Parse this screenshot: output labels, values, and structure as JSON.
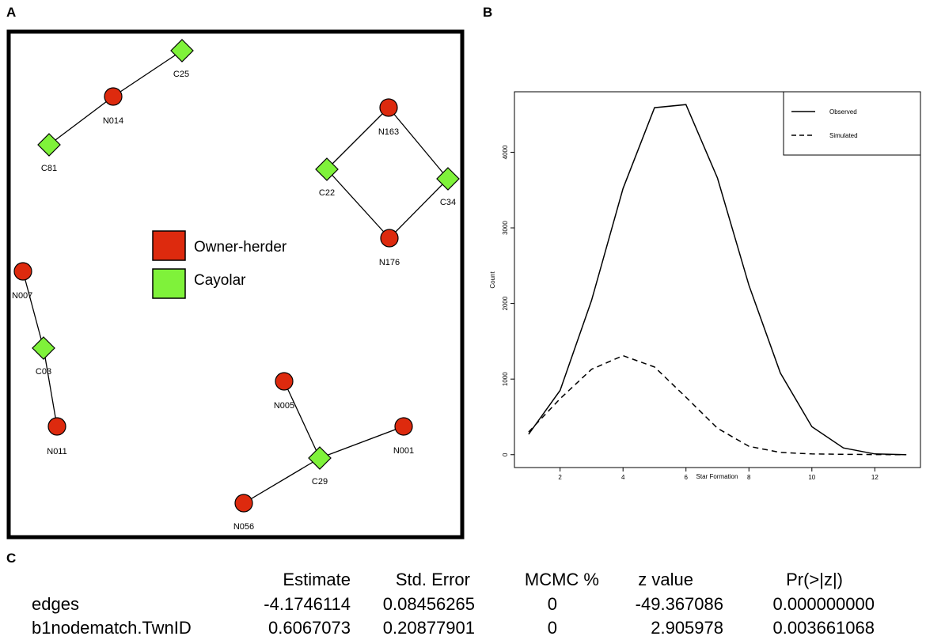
{
  "panel_letters": {
    "a": "A",
    "b": "B",
    "c": "C"
  },
  "colors": {
    "owner_herder": "#dd2a0e",
    "cayolar": "#7ff23a",
    "stroke": "#000000"
  },
  "network": {
    "legend": {
      "owner_herder": "Owner-herder",
      "cayolar": "Cayolar"
    },
    "nodes": [
      {
        "id": "C25",
        "type": "cayolar"
      },
      {
        "id": "N014",
        "type": "owner_herder"
      },
      {
        "id": "C81",
        "type": "cayolar"
      },
      {
        "id": "N163",
        "type": "owner_herder"
      },
      {
        "id": "C22",
        "type": "cayolar"
      },
      {
        "id": "C34",
        "type": "cayolar"
      },
      {
        "id": "N176",
        "type": "owner_herder"
      },
      {
        "id": "N007",
        "type": "owner_herder"
      },
      {
        "id": "C03",
        "type": "cayolar"
      },
      {
        "id": "N011",
        "type": "owner_herder"
      },
      {
        "id": "N005",
        "type": "owner_herder"
      },
      {
        "id": "N001",
        "type": "owner_herder"
      },
      {
        "id": "C29",
        "type": "cayolar"
      },
      {
        "id": "N056",
        "type": "owner_herder"
      }
    ],
    "edges": [
      [
        "C25",
        "N014"
      ],
      [
        "N014",
        "C81"
      ],
      [
        "N163",
        "C22"
      ],
      [
        "N163",
        "C34"
      ],
      [
        "C22",
        "N176"
      ],
      [
        "C34",
        "N176"
      ],
      [
        "N007",
        "C03"
      ],
      [
        "C03",
        "N011"
      ],
      [
        "N005",
        "C29"
      ],
      [
        "C29",
        "N001"
      ],
      [
        "C29",
        "N056"
      ]
    ]
  },
  "chart_data": {
    "type": "line",
    "title": "",
    "xlabel": "Star Formation",
    "ylabel": "Count",
    "xlim": [
      0.55,
      13.45
    ],
    "ylim": [
      -170,
      4800
    ],
    "xticks": [
      2,
      4,
      6,
      8,
      10,
      12
    ],
    "yticks": [
      0,
      1000,
      2000,
      3000,
      4000
    ],
    "x": [
      1,
      2,
      3,
      4,
      5,
      6,
      7,
      8,
      9,
      10,
      11,
      12,
      13
    ],
    "series": [
      {
        "name": "Observed",
        "style": "solid",
        "values": [
          270,
          850,
          2040,
          3520,
          4590,
          4630,
          3660,
          2240,
          1080,
          370,
          90,
          10,
          0
        ]
      },
      {
        "name": "Simulated",
        "style": "dashed",
        "values": [
          300,
          740,
          1130,
          1310,
          1160,
          760,
          350,
          110,
          30,
          10,
          5,
          2,
          0
        ]
      }
    ],
    "legend_position": "top-right",
    "grid": false
  },
  "table": {
    "columns": [
      "Estimate",
      "Std. Error",
      "MCMC %",
      "z value",
      "Pr(>|z|)"
    ],
    "rows": [
      {
        "name": "edges",
        "values": [
          "-4.1746114",
          "0.08456265",
          "0",
          "-49.367086",
          "0.000000000"
        ]
      },
      {
        "name": "b1nodematch.TwnID",
        "values": [
          "0.6067073",
          "0.20877901",
          "0",
          "2.905978",
          "0.003661068"
        ]
      }
    ]
  }
}
